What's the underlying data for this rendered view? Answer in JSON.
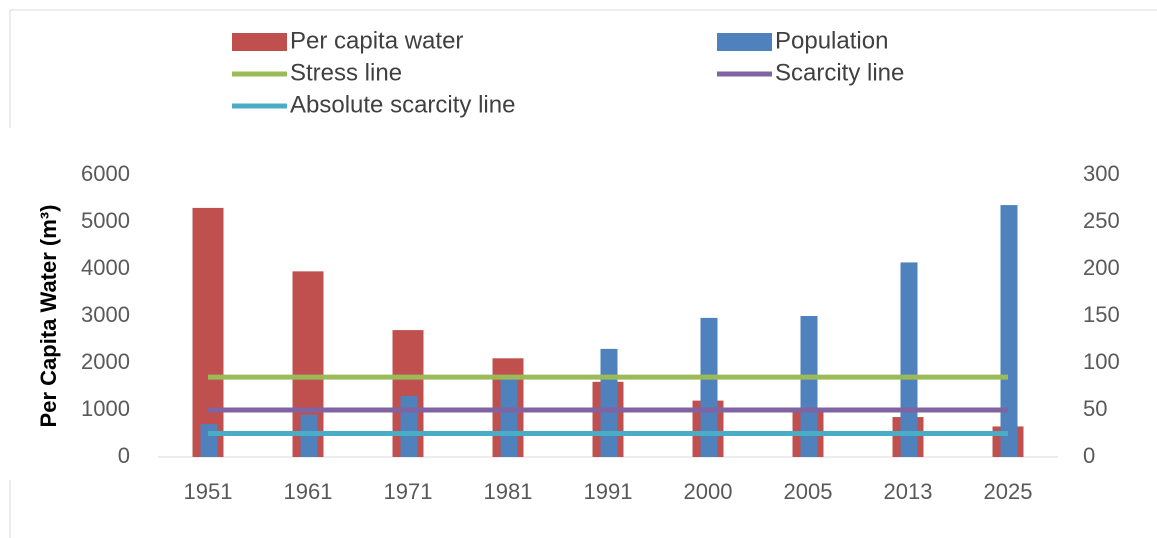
{
  "chart_data": {
    "type": "bar",
    "ylabel": "Per Capita Water (m³)",
    "categories": [
      "1951",
      "1961",
      "1971",
      "1981",
      "1991",
      "2000",
      "2005",
      "2013",
      "2025"
    ],
    "series": [
      {
        "name": "Per capita water",
        "type": "bar",
        "color": "#c0504d",
        "values": [
          5300,
          3950,
          2700,
          2100,
          1600,
          1200,
          1000,
          850,
          650
        ]
      },
      {
        "name": "Population",
        "type": "bar",
        "axis": "y2",
        "color": "#4f81bd",
        "values": [
          35,
          45,
          65,
          84,
          115,
          148,
          150,
          207,
          268
        ]
      },
      {
        "name": "Stress line",
        "type": "line",
        "color": "#9bbb59",
        "values": [
          1700,
          1700,
          1700,
          1700,
          1700,
          1700,
          1700,
          1700,
          1700
        ]
      },
      {
        "name": "Scarcity line",
        "type": "line",
        "color": "#8064a2",
        "values": [
          1000,
          1000,
          1000,
          1000,
          1000,
          1000,
          1000,
          1000,
          1000
        ]
      },
      {
        "name": "Absolute scarcity line",
        "type": "line",
        "color": "#4bacc6",
        "values": [
          500,
          500,
          500,
          500,
          500,
          500,
          500,
          500,
          500
        ]
      }
    ],
    "ylim": [
      0,
      6000
    ],
    "yticks": [
      0,
      1000,
      2000,
      3000,
      4000,
      5000,
      6000
    ],
    "y2lim": [
      0,
      300
    ],
    "y2ticks": [
      0,
      50,
      100,
      150,
      200,
      250,
      300
    ]
  }
}
